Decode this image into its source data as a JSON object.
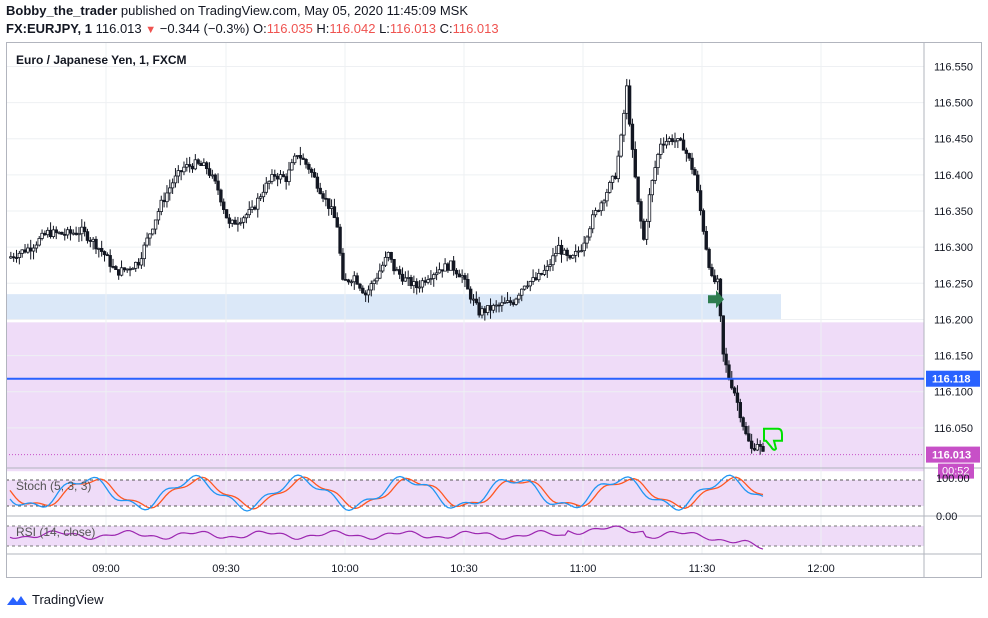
{
  "header": {
    "author": "Bobby_the_trader",
    "published": "published on TradingView.com, May 05, 2020 11:45:09 MSK",
    "symbol": "FX:EURJPY, 1",
    "last": "116.013",
    "change": "−0.344 (−0.3%)",
    "o_label": "O:",
    "o": "116.035",
    "h_label": "H:",
    "h": "116.042",
    "l_label": "L:",
    "l": "116.013",
    "c_label": "C:",
    "c": "116.013"
  },
  "chart": {
    "title": "Euro / Japanese Yen, 1, FXCM",
    "current_price_label": "116.013",
    "countdown": "00:52",
    "hline_label": "116.118",
    "price_axis_ticks": [
      "116.550",
      "116.500",
      "116.450",
      "116.400",
      "116.350",
      "116.300",
      "116.250",
      "116.200",
      "116.150",
      "116.100",
      "116.050"
    ],
    "time_axis_ticks": [
      "09:00",
      "09:30",
      "10:00",
      "10:30",
      "11:00",
      "11:30",
      "12:00"
    ],
    "stoch_label": "Stoch (5, 3, 3)",
    "stoch_ticks": [
      "100.00",
      "0.00"
    ],
    "rsi_label": "RSI (14, close)",
    "colors": {
      "up": "#ffffff",
      "down": "#131722",
      "hline": "#2962ff",
      "price": "#c750c7",
      "zone_blue": "#dbe8f8",
      "zone_purple": "#efdcf8",
      "stoch_k": "#2196f3",
      "stoch_d": "#ff5722",
      "rsi": "#9c27b0",
      "arrow": "#2e7d4f",
      "thumb": "#00e000"
    }
  },
  "chart_data": {
    "type": "candlestick",
    "title": "Euro / Japanese Yen, 1, FXCM",
    "ylim": [
      116.0,
      116.57
    ],
    "x_ticks": [
      "09:00",
      "09:30",
      "10:00",
      "10:30",
      "11:00",
      "11:30",
      "12:00"
    ],
    "horizontal_line": 116.118,
    "last_price": 116.013,
    "zones": [
      {
        "color": "blue",
        "from": 116.2,
        "to": 116.235
      },
      {
        "color": "purple",
        "from": 115.99,
        "to": 116.196
      }
    ],
    "close_path": [
      [
        0,
        116.285
      ],
      [
        8,
        116.3
      ],
      [
        14,
        116.32
      ],
      [
        20,
        116.318
      ],
      [
        26,
        116.322
      ],
      [
        30,
        116.308
      ],
      [
        34,
        116.29
      ],
      [
        38,
        116.265
      ],
      [
        42,
        116.27
      ],
      [
        46,
        116.28
      ],
      [
        50,
        116.32
      ],
      [
        54,
        116.36
      ],
      [
        58,
        116.39
      ],
      [
        62,
        116.41
      ],
      [
        66,
        116.415
      ],
      [
        70,
        116.41
      ],
      [
        74,
        116.38
      ],
      [
        78,
        116.33
      ],
      [
        82,
        116.34
      ],
      [
        86,
        116.35
      ],
      [
        90,
        116.38
      ],
      [
        94,
        116.4
      ],
      [
        98,
        116.395
      ],
      [
        102,
        116.43
      ],
      [
        106,
        116.41
      ],
      [
        110,
        116.38
      ],
      [
        114,
        116.35
      ],
      [
        116,
        116.33
      ],
      [
        118,
        116.25
      ],
      [
        122,
        116.26
      ],
      [
        126,
        116.235
      ],
      [
        130,
        116.26
      ],
      [
        134,
        116.29
      ],
      [
        136,
        116.27
      ],
      [
        140,
        116.255
      ],
      [
        144,
        116.245
      ],
      [
        148,
        116.26
      ],
      [
        152,
        116.27
      ],
      [
        156,
        116.275
      ],
      [
        160,
        116.26
      ],
      [
        162,
        116.24
      ],
      [
        166,
        116.21
      ],
      [
        170,
        116.215
      ],
      [
        174,
        116.22
      ],
      [
        178,
        116.225
      ],
      [
        182,
        116.25
      ],
      [
        186,
        116.255
      ],
      [
        190,
        116.27
      ],
      [
        194,
        116.3
      ],
      [
        198,
        116.28
      ],
      [
        202,
        116.3
      ],
      [
        206,
        116.34
      ],
      [
        210,
        116.37
      ],
      [
        214,
        116.4
      ],
      [
        216,
        116.45
      ],
      [
        218,
        116.52
      ],
      [
        220,
        116.43
      ],
      [
        222,
        116.36
      ],
      [
        224,
        116.31
      ],
      [
        226,
        116.37
      ],
      [
        228,
        116.41
      ],
      [
        230,
        116.445
      ],
      [
        234,
        116.45
      ],
      [
        238,
        116.44
      ],
      [
        242,
        116.4
      ],
      [
        244,
        116.35
      ],
      [
        246,
        116.3
      ],
      [
        248,
        116.255
      ],
      [
        250,
        116.25
      ],
      [
        252,
        116.15
      ],
      [
        254,
        116.12
      ],
      [
        256,
        116.1
      ],
      [
        258,
        116.07
      ],
      [
        260,
        116.04
      ],
      [
        262,
        116.02
      ],
      [
        264,
        116.03
      ],
      [
        266,
        116.013
      ]
    ],
    "stoch_range": [
      0,
      100
    ],
    "rsi_trend": "declining"
  }
}
